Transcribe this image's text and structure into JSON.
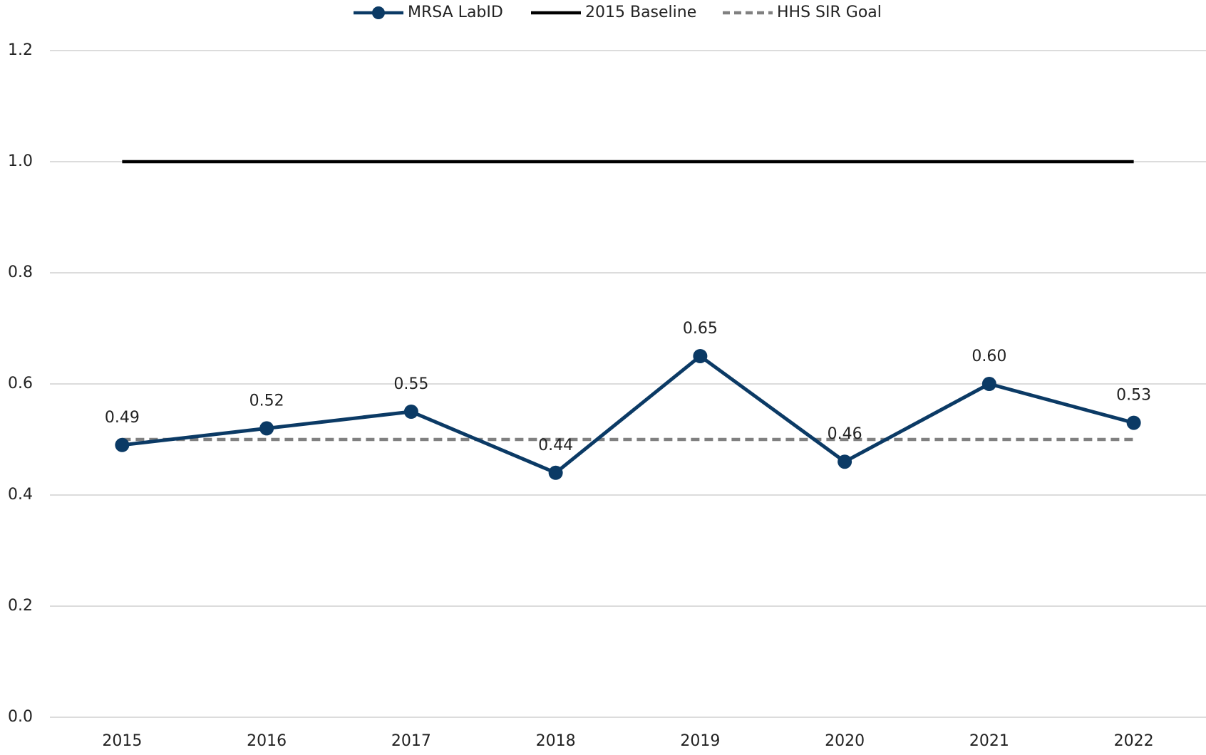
{
  "chart_data": {
    "type": "line",
    "categories": [
      "2015",
      "2016",
      "2017",
      "2018",
      "2019",
      "2020",
      "2021",
      "2022"
    ],
    "series": [
      {
        "name": "MRSA LabID",
        "color": "#0b3a65",
        "marker": true,
        "values": [
          0.49,
          0.52,
          0.55,
          0.44,
          0.65,
          0.46,
          0.6,
          0.53
        ],
        "value_labels": [
          "0.49",
          "0.52",
          "0.55",
          "0.44",
          "0.65",
          "0.46",
          "0.60",
          "0.53"
        ]
      },
      {
        "name": "2015 Baseline",
        "color": "#000000",
        "values": [
          1,
          1,
          1,
          1,
          1,
          1,
          1,
          1
        ]
      },
      {
        "name": "HHS SIR Goal",
        "color": "#808080",
        "dashed": true,
        "values": [
          0.5,
          0.5,
          0.5,
          0.5,
          0.5,
          0.5,
          0.5,
          0.5
        ]
      }
    ],
    "ylim": [
      0,
      1.2
    ],
    "yticks": [
      {
        "value": 0,
        "label": "0.0"
      },
      0.2,
      0.4,
      0.6,
      0.8,
      {
        "value": 1,
        "label": "1.0"
      },
      1.2
    ],
    "grid": true,
    "legend": "top"
  }
}
